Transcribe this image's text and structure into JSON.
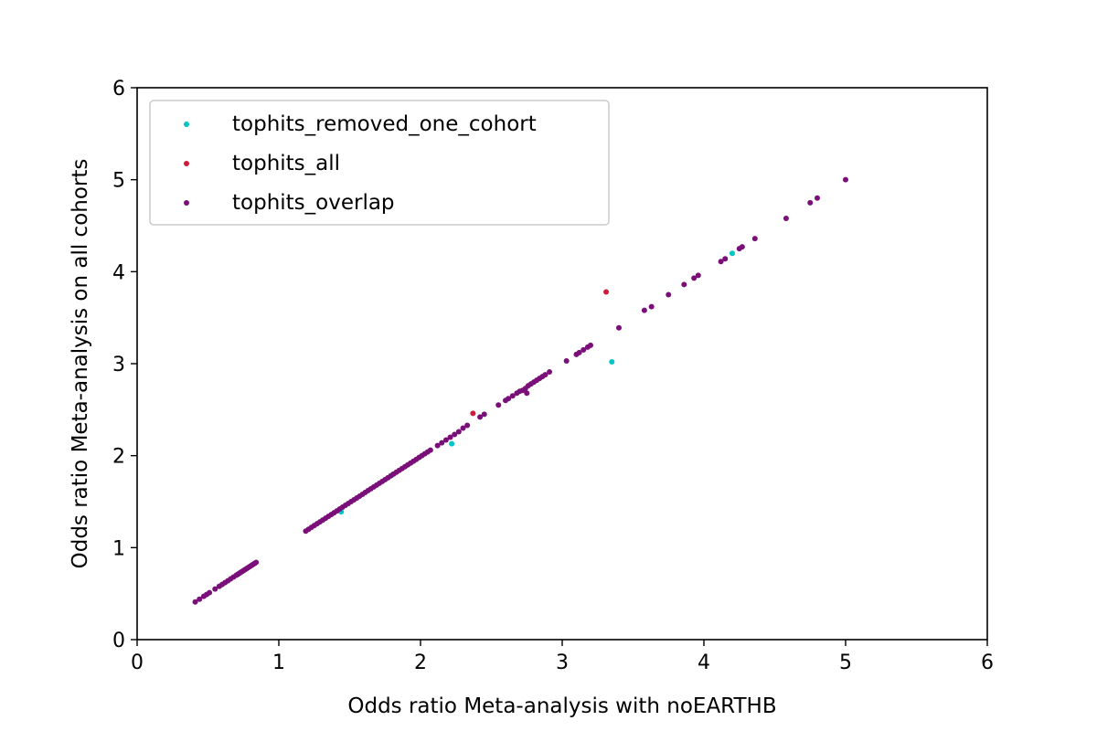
{
  "chart_data": {
    "type": "scatter",
    "title": "",
    "xlabel": "Odds ratio Meta-analysis with noEARTHB",
    "ylabel": "Odds ratio Meta-analysis on all cohorts",
    "xlim": [
      0,
      6
    ],
    "ylim": [
      0,
      6
    ],
    "xticks": [
      "0",
      "1",
      "2",
      "3",
      "4",
      "5",
      "6"
    ],
    "yticks": [
      "0",
      "1",
      "2",
      "3",
      "4",
      "5",
      "6"
    ],
    "grid": false,
    "legend_position": "top-left",
    "series": [
      {
        "name": "tophits_removed_one_cohort",
        "color": "#00c5c8",
        "points": [
          [
            1.44,
            1.39
          ],
          [
            1.8,
            1.79
          ],
          [
            2.22,
            2.13
          ],
          [
            3.35,
            3.02
          ],
          [
            4.2,
            4.2
          ]
        ]
      },
      {
        "name": "tophits_all",
        "color": "#d01c3a",
        "points": [
          [
            2.37,
            2.46
          ],
          [
            3.31,
            3.78
          ]
        ]
      },
      {
        "name": "tophits_overlap",
        "color": "#7a0f7a",
        "points": [
          [
            0.41,
            0.41
          ],
          [
            0.44,
            0.44
          ],
          [
            0.47,
            0.47
          ],
          [
            0.49,
            0.49
          ],
          [
            0.51,
            0.51
          ],
          [
            0.55,
            0.55
          ],
          [
            0.58,
            0.58
          ],
          [
            0.6,
            0.6
          ],
          [
            0.62,
            0.62
          ],
          [
            0.64,
            0.64
          ],
          [
            0.66,
            0.66
          ],
          [
            0.68,
            0.68
          ],
          [
            0.7,
            0.7
          ],
          [
            0.71,
            0.71
          ],
          [
            0.72,
            0.72
          ],
          [
            0.73,
            0.73
          ],
          [
            0.74,
            0.74
          ],
          [
            0.75,
            0.75
          ],
          [
            0.76,
            0.76
          ],
          [
            0.77,
            0.77
          ],
          [
            0.78,
            0.78
          ],
          [
            0.79,
            0.79
          ],
          [
            0.8,
            0.8
          ],
          [
            0.81,
            0.81
          ],
          [
            0.82,
            0.82
          ],
          [
            0.83,
            0.83
          ],
          [
            0.84,
            0.84
          ],
          [
            1.19,
            1.18
          ],
          [
            1.21,
            1.2
          ],
          [
            1.23,
            1.22
          ],
          [
            1.25,
            1.24
          ],
          [
            1.27,
            1.26
          ],
          [
            1.29,
            1.28
          ],
          [
            1.31,
            1.3
          ],
          [
            1.33,
            1.32
          ],
          [
            1.35,
            1.34
          ],
          [
            1.37,
            1.36
          ],
          [
            1.39,
            1.38
          ],
          [
            1.41,
            1.4
          ],
          [
            1.43,
            1.42
          ],
          [
            1.45,
            1.44
          ],
          [
            1.47,
            1.46
          ],
          [
            1.49,
            1.48
          ],
          [
            1.51,
            1.5
          ],
          [
            1.53,
            1.52
          ],
          [
            1.55,
            1.54
          ],
          [
            1.57,
            1.56
          ],
          [
            1.59,
            1.58
          ],
          [
            1.61,
            1.6
          ],
          [
            1.63,
            1.62
          ],
          [
            1.65,
            1.64
          ],
          [
            1.67,
            1.66
          ],
          [
            1.69,
            1.68
          ],
          [
            1.71,
            1.7
          ],
          [
            1.73,
            1.72
          ],
          [
            1.75,
            1.74
          ],
          [
            1.77,
            1.76
          ],
          [
            1.79,
            1.78
          ],
          [
            1.81,
            1.8
          ],
          [
            1.83,
            1.82
          ],
          [
            1.85,
            1.84
          ],
          [
            1.87,
            1.86
          ],
          [
            1.89,
            1.88
          ],
          [
            1.91,
            1.9
          ],
          [
            1.93,
            1.92
          ],
          [
            1.95,
            1.94
          ],
          [
            1.97,
            1.96
          ],
          [
            1.99,
            1.98
          ],
          [
            2.01,
            2.0
          ],
          [
            2.03,
            2.02
          ],
          [
            2.05,
            2.04
          ],
          [
            2.07,
            2.06
          ],
          [
            2.12,
            2.11
          ],
          [
            2.15,
            2.14
          ],
          [
            2.18,
            2.17
          ],
          [
            2.21,
            2.2
          ],
          [
            2.24,
            2.23
          ],
          [
            2.27,
            2.26
          ],
          [
            2.3,
            2.3
          ],
          [
            2.33,
            2.33
          ],
          [
            2.42,
            2.42
          ],
          [
            2.45,
            2.45
          ],
          [
            2.55,
            2.55
          ],
          [
            2.6,
            2.6
          ],
          [
            2.62,
            2.62
          ],
          [
            2.65,
            2.65
          ],
          [
            2.68,
            2.68
          ],
          [
            2.7,
            2.7
          ],
          [
            2.72,
            2.71
          ],
          [
            2.74,
            2.73
          ],
          [
            2.75,
            2.68
          ],
          [
            2.76,
            2.76
          ],
          [
            2.78,
            2.78
          ],
          [
            2.8,
            2.8
          ],
          [
            2.82,
            2.82
          ],
          [
            2.84,
            2.84
          ],
          [
            2.86,
            2.86
          ],
          [
            2.88,
            2.88
          ],
          [
            2.91,
            2.91
          ],
          [
            3.03,
            3.03
          ],
          [
            3.1,
            3.1
          ],
          [
            3.12,
            3.12
          ],
          [
            3.15,
            3.15
          ],
          [
            3.18,
            3.18
          ],
          [
            3.2,
            3.2
          ],
          [
            3.4,
            3.39
          ],
          [
            3.58,
            3.58
          ],
          [
            3.63,
            3.62
          ],
          [
            3.75,
            3.75
          ],
          [
            3.86,
            3.86
          ],
          [
            3.93,
            3.93
          ],
          [
            3.96,
            3.96
          ],
          [
            4.12,
            4.11
          ],
          [
            4.15,
            4.14
          ],
          [
            4.25,
            4.25
          ],
          [
            4.27,
            4.27
          ],
          [
            4.36,
            4.36
          ],
          [
            4.58,
            4.58
          ],
          [
            4.75,
            4.75
          ],
          [
            4.8,
            4.8
          ],
          [
            5.0,
            5.0
          ]
        ]
      }
    ]
  }
}
